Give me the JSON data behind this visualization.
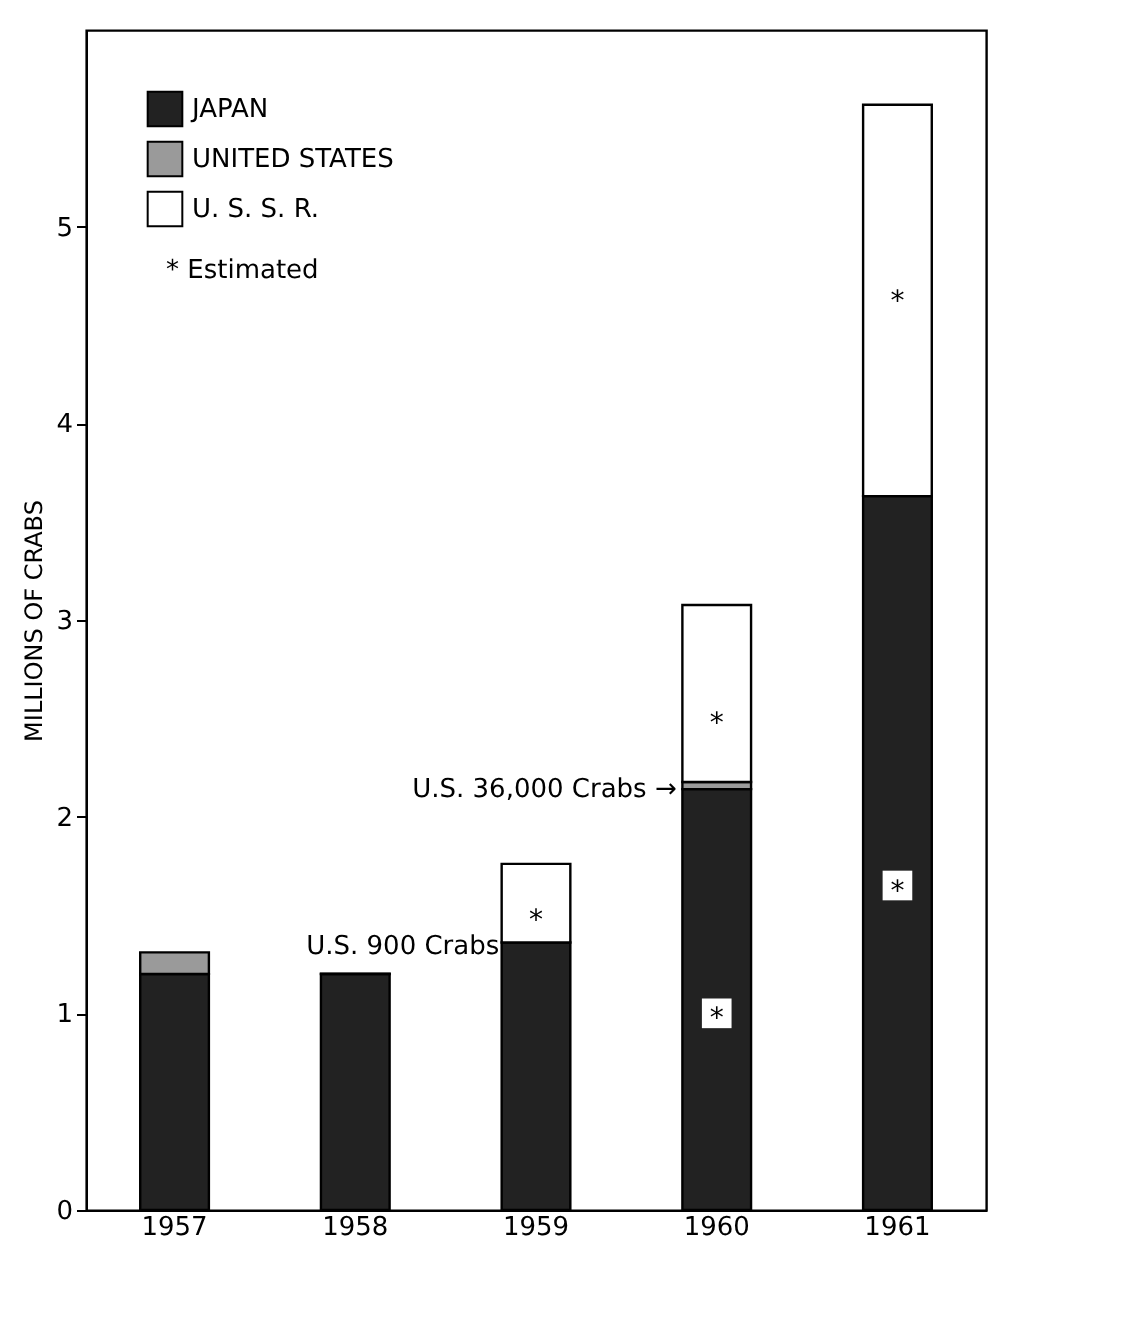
{
  "chart_data": {
    "type": "bar",
    "ylabel": "MILLIONS OF CRABS",
    "categories": [
      "1957",
      "1958",
      "1959",
      "1960",
      "1961"
    ],
    "stacked": true,
    "series": [
      {
        "name": "JAPAN",
        "color": "#222222",
        "values": [
          1.2,
          1.2,
          1.36,
          2.14,
          3.63
        ]
      },
      {
        "name": "UNITED STATES",
        "color": "#9a9a9a",
        "values": [
          0.11,
          0.0009,
          null,
          0.036,
          null
        ]
      },
      {
        "name": "U. S. S. R.",
        "color": "#ffffff",
        "values": [
          null,
          null,
          0.4,
          0.9,
          1.99
        ]
      }
    ],
    "ylim": [
      0,
      6
    ],
    "yticks": [
      0,
      1,
      2,
      3,
      4,
      5
    ],
    "grid": false,
    "legend": "top left",
    "annotations": [
      "* Estimated",
      {
        "text": "U.S. 900 Crabs",
        "x": "1958",
        "y": 1.2
      },
      {
        "text": "U.S. 36,000 Crabs →",
        "x": "1960",
        "y": 2.14
      },
      {
        "text": "*",
        "x": "1959",
        "y": 1.5
      },
      {
        "text": "*",
        "x": "1960",
        "y": 2.5
      },
      {
        "text": "*",
        "x": "1960",
        "y": 1.0
      },
      {
        "text": "*",
        "x": "1961",
        "y": 1.65
      },
      {
        "text": "*",
        "x": "1961",
        "y": 4.65
      }
    ]
  }
}
